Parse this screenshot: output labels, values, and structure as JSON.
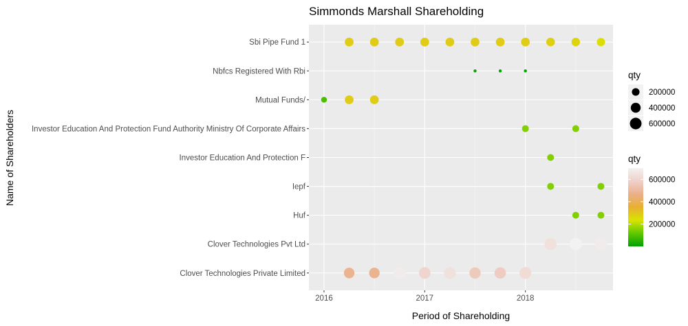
{
  "chart_data": {
    "type": "scatter",
    "title": "Simmonds Marshall Shareholding",
    "xlabel": "Period of Shareholding",
    "ylabel": "Name of Shareholders",
    "xlim": [
      2015.85,
      2018.87
    ],
    "x_ticks": [
      2016,
      2017,
      2018
    ],
    "x_tick_labels": [
      "2016",
      "2017",
      "2018"
    ],
    "grid": true,
    "categories": [
      "Clover Technologies Private Limited",
      "Clover Technologies Pvt Ltd",
      "Huf",
      "Iepf",
      "Investor Education And Protection F",
      "Investor Education And Protection Fund Authority Ministry Of Corporate Affairs",
      "Mutual Funds/",
      "Nbfcs Registered With Rbi",
      "Sbi Pipe Fund  1"
    ],
    "series": [
      {
        "name": "Sbi Pipe Fund  1",
        "points": [
          {
            "x": 2016.25,
            "qty": 290000
          },
          {
            "x": 2016.5,
            "qty": 290000
          },
          {
            "x": 2016.75,
            "qty": 290000
          },
          {
            "x": 2017.0,
            "qty": 290000
          },
          {
            "x": 2017.25,
            "qty": 290000
          },
          {
            "x": 2017.5,
            "qty": 290000
          },
          {
            "x": 2017.75,
            "qty": 290000
          },
          {
            "x": 2018.0,
            "qty": 285000
          },
          {
            "x": 2018.25,
            "qty": 280000
          },
          {
            "x": 2018.5,
            "qty": 270000
          },
          {
            "x": 2018.75,
            "qty": 250000
          }
        ]
      },
      {
        "name": "Nbfcs Registered With Rbi",
        "points": [
          {
            "x": 2017.5,
            "qty": 5000
          },
          {
            "x": 2017.75,
            "qty": 5000
          },
          {
            "x": 2018.0,
            "qty": 5000
          }
        ]
      },
      {
        "name": "Mutual Funds/",
        "points": [
          {
            "x": 2016.0,
            "qty": 90000
          },
          {
            "x": 2016.25,
            "qty": 290000
          },
          {
            "x": 2016.5,
            "qty": 290000
          }
        ]
      },
      {
        "name": "Investor Education And Protection Fund Authority Ministry Of Corporate Affairs",
        "points": [
          {
            "x": 2018.0,
            "qty": 150000
          },
          {
            "x": 2018.5,
            "qty": 150000
          }
        ]
      },
      {
        "name": "Investor Education And Protection F",
        "points": [
          {
            "x": 2018.25,
            "qty": 150000
          }
        ]
      },
      {
        "name": "Iepf",
        "points": [
          {
            "x": 2018.25,
            "qty": 150000
          },
          {
            "x": 2018.75,
            "qty": 150000
          }
        ]
      },
      {
        "name": "Huf",
        "points": [
          {
            "x": 2018.5,
            "qty": 150000
          },
          {
            "x": 2018.75,
            "qty": 150000
          }
        ]
      },
      {
        "name": "Clover Technologies Pvt Ltd",
        "points": [
          {
            "x": 2018.25,
            "qty": 640000
          },
          {
            "x": 2018.5,
            "qty": 700000
          },
          {
            "x": 2018.75,
            "qty": 680000
          }
        ]
      },
      {
        "name": "Clover Technologies Private Limited",
        "points": [
          {
            "x": 2016.25,
            "qty": 480000
          },
          {
            "x": 2016.5,
            "qty": 480000
          },
          {
            "x": 2016.75,
            "qty": 680000
          },
          {
            "x": 2017.0,
            "qty": 600000
          },
          {
            "x": 2017.25,
            "qty": 640000
          },
          {
            "x": 2017.5,
            "qty": 560000
          },
          {
            "x": 2017.75,
            "qty": 570000
          },
          {
            "x": 2018.0,
            "qty": 620000
          }
        ]
      }
    ],
    "legend_size": {
      "title": "qty",
      "breaks": [
        200000,
        400000,
        600000
      ],
      "labels": [
        "200000",
        "400000",
        "600000"
      ],
      "placement": "right"
    },
    "legend_color": {
      "title": "qty",
      "breaks": [
        200000,
        400000,
        600000
      ],
      "labels": [
        "200000",
        "400000",
        "600000"
      ],
      "range": [
        0,
        700000
      ],
      "gradient": [
        "#00a000",
        "#60c800",
        "#d8e400",
        "#e8b030",
        "#eab08a",
        "#efd0c8",
        "#f2f2f2"
      ],
      "placement": "right"
    }
  }
}
